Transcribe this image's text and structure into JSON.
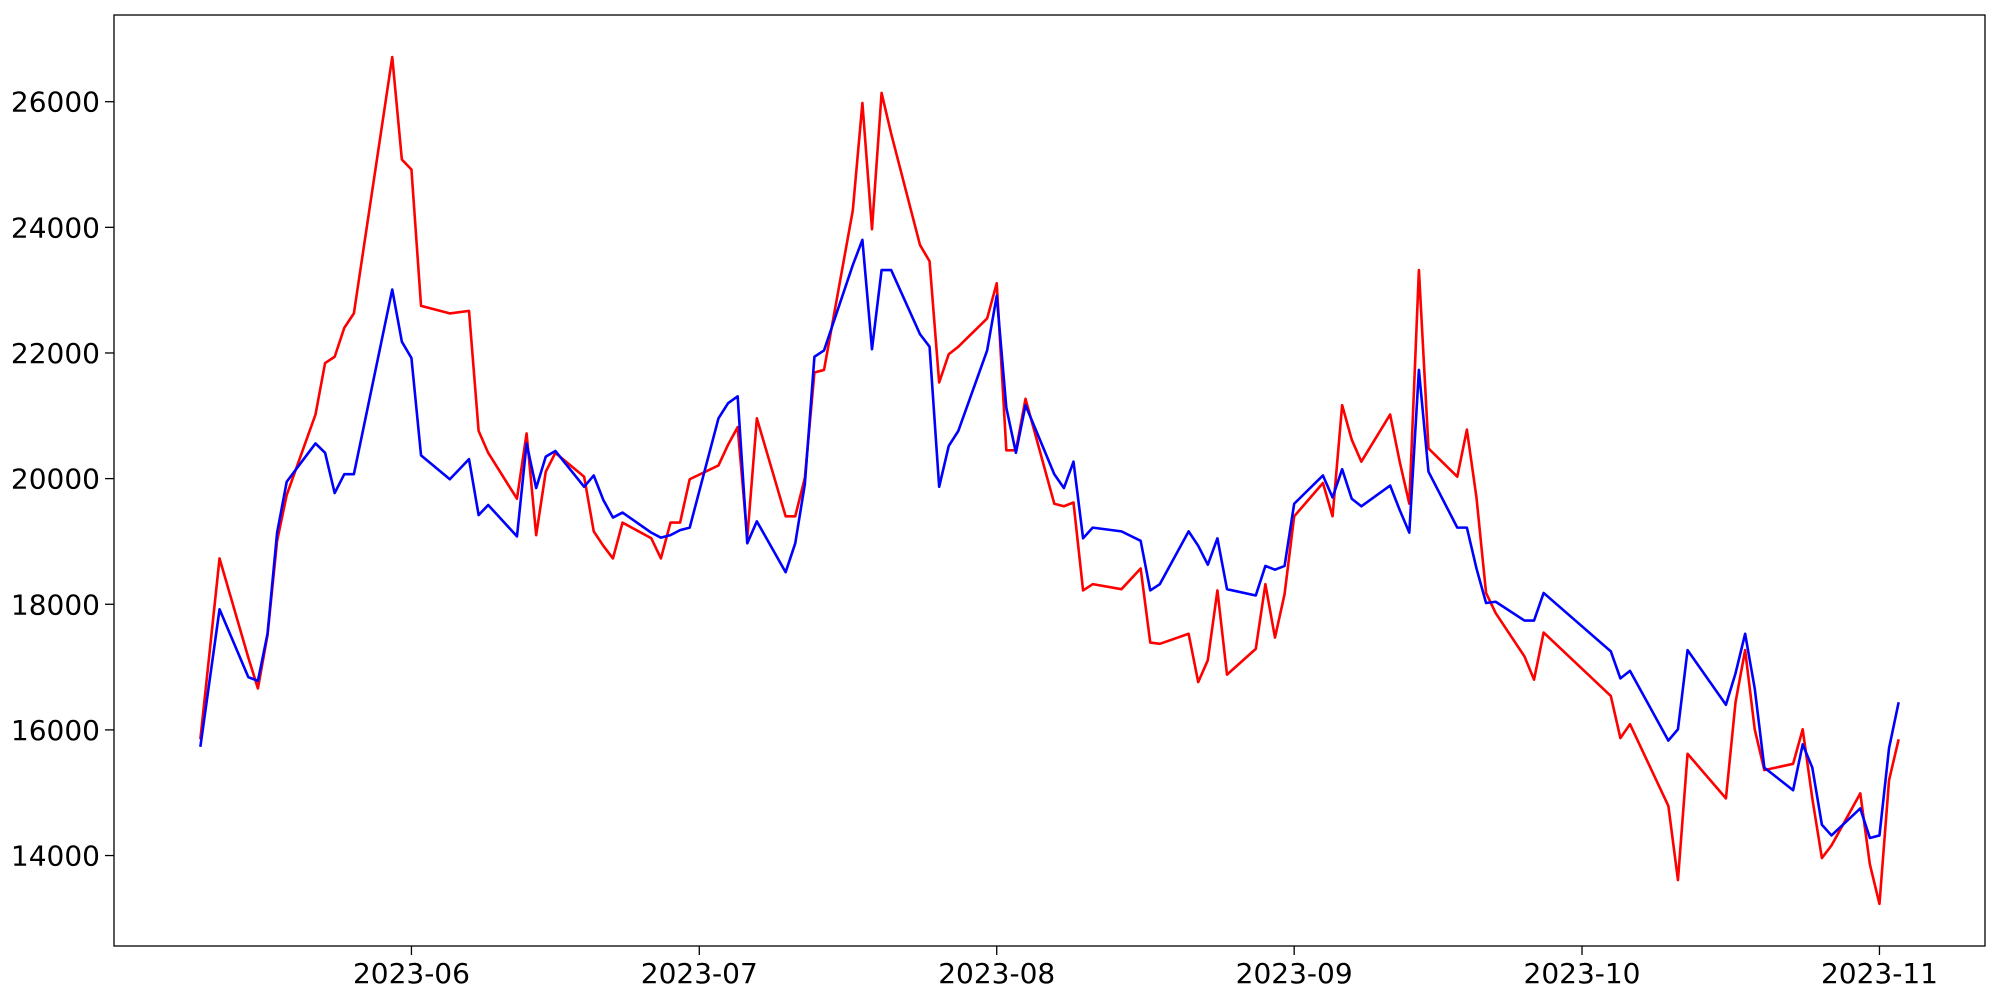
{
  "chart_data": {
    "type": "line",
    "x": [
      "2023-05-10",
      "2023-05-12",
      "2023-05-15",
      "2023-05-16",
      "2023-05-17",
      "2023-05-18",
      "2023-05-19",
      "2023-05-22",
      "2023-05-23",
      "2023-05-24",
      "2023-05-25",
      "2023-05-26",
      "2023-05-30",
      "2023-05-31",
      "2023-06-01",
      "2023-06-02",
      "2023-06-05",
      "2023-06-07",
      "2023-06-08",
      "2023-06-09",
      "2023-06-12",
      "2023-06-13",
      "2023-06-14",
      "2023-06-15",
      "2023-06-16",
      "2023-06-19",
      "2023-06-20",
      "2023-06-21",
      "2023-06-22",
      "2023-06-23",
      "2023-06-26",
      "2023-06-27",
      "2023-06-28",
      "2023-06-29",
      "2023-06-30",
      "2023-07-03",
      "2023-07-04",
      "2023-07-05",
      "2023-07-06",
      "2023-07-07",
      "2023-07-10",
      "2023-07-11",
      "2023-07-12",
      "2023-07-13",
      "2023-07-14",
      "2023-07-17",
      "2023-07-18",
      "2023-07-19",
      "2023-07-20",
      "2023-07-21",
      "2023-07-24",
      "2023-07-25",
      "2023-07-26",
      "2023-07-27",
      "2023-07-28",
      "2023-07-31",
      "2023-08-01",
      "2023-08-02",
      "2023-08-03",
      "2023-08-04",
      "2023-08-07",
      "2023-08-08",
      "2023-08-09",
      "2023-08-10",
      "2023-08-11",
      "2023-08-14",
      "2023-08-16",
      "2023-08-17",
      "2023-08-18",
      "2023-08-21",
      "2023-08-22",
      "2023-08-23",
      "2023-08-24",
      "2023-08-25",
      "2023-08-28",
      "2023-08-29",
      "2023-08-30",
      "2023-08-31",
      "2023-09-01",
      "2023-09-04",
      "2023-09-05",
      "2023-09-06",
      "2023-09-07",
      "2023-09-08",
      "2023-09-11",
      "2023-09-12",
      "2023-09-13",
      "2023-09-14",
      "2023-09-15",
      "2023-09-18",
      "2023-09-19",
      "2023-09-20",
      "2023-09-21",
      "2023-09-22",
      "2023-09-25",
      "2023-09-26",
      "2023-09-27",
      "2023-10-04",
      "2023-10-05",
      "2023-10-06",
      "2023-10-10",
      "2023-10-11",
      "2023-10-12",
      "2023-10-16",
      "2023-10-17",
      "2023-10-18",
      "2023-10-19",
      "2023-10-20",
      "2023-10-23",
      "2023-10-24",
      "2023-10-25",
      "2023-10-26",
      "2023-10-27",
      "2023-10-30",
      "2023-10-31",
      "2023-11-01",
      "2023-11-02",
      "2023-11-03"
    ],
    "series": [
      {
        "color": "#ff0000",
        "values": [
          15850,
          18730,
          17150,
          16660,
          17510,
          19010,
          19740,
          21020,
          21840,
          21940,
          22400,
          22630,
          26710,
          25080,
          24920,
          22750,
          22630,
          22670,
          20760,
          20410,
          19680,
          20720,
          19100,
          20110,
          20410,
          20030,
          19160,
          18930,
          18730,
          19300,
          19050,
          18730,
          19300,
          19300,
          19990,
          20210,
          20540,
          20820,
          19050,
          20960,
          19400,
          19400,
          20010,
          21690,
          21730,
          24270,
          25980,
          23970,
          26140,
          25490,
          23720,
          23460,
          21530,
          21980,
          22100,
          22550,
          23110,
          20450,
          20450,
          21270,
          19600,
          19560,
          19620,
          18220,
          18320,
          18240,
          18570,
          17390,
          17370,
          17530,
          16760,
          17110,
          18220,
          16880,
          17290,
          18320,
          17470,
          18160,
          19400,
          19930,
          19400,
          21170,
          20620,
          20270,
          21020,
          20270,
          19600,
          23320,
          20480,
          20030,
          20780,
          19700,
          18180,
          17860,
          17170,
          16800,
          17550,
          16540,
          15870,
          16090,
          14790,
          13610,
          15620,
          14910,
          16440,
          17270,
          16010,
          15360,
          15460,
          16010,
          14910,
          13960,
          14160,
          14990,
          13860,
          13230,
          15200,
          15850
        ]
      },
      {
        "color": "#0000ff",
        "values": [
          15730,
          17920,
          16840,
          16780,
          17530,
          19140,
          19950,
          20560,
          20410,
          19770,
          20070,
          20070,
          23010,
          22180,
          21920,
          20370,
          19990,
          20310,
          19420,
          19580,
          19080,
          20560,
          19850,
          20350,
          20440,
          19870,
          20050,
          19660,
          19380,
          19460,
          19140,
          19060,
          19100,
          19180,
          19220,
          20960,
          21200,
          21310,
          18970,
          19320,
          18510,
          18970,
          19910,
          21940,
          22040,
          23400,
          23800,
          22060,
          23320,
          23320,
          22300,
          22100,
          19870,
          20520,
          20760,
          22040,
          22910,
          21130,
          20410,
          21170,
          20070,
          19850,
          20270,
          19050,
          19220,
          19160,
          19010,
          18220,
          18320,
          19160,
          18930,
          18630,
          19050,
          18240,
          18140,
          18610,
          18550,
          18610,
          19600,
          20050,
          19700,
          20150,
          19680,
          19560,
          19890,
          19500,
          19140,
          21730,
          20110,
          19220,
          19220,
          18570,
          18020,
          18040,
          17740,
          17740,
          18180,
          17250,
          16820,
          16940,
          15830,
          16010,
          17270,
          16400,
          16900,
          17530,
          16660,
          15400,
          15040,
          15770,
          15400,
          14490,
          14320,
          14750,
          14280,
          14320,
          15710,
          16440
        ]
      }
    ],
    "xlim": [
      "2023-05-01",
      "2023-11-12"
    ],
    "xticks": [
      {
        "value": "2023-06-01",
        "label": "2023-06"
      },
      {
        "value": "2023-07-01",
        "label": "2023-07"
      },
      {
        "value": "2023-08-01",
        "label": "2023-08"
      },
      {
        "value": "2023-09-01",
        "label": "2023-09"
      },
      {
        "value": "2023-10-01",
        "label": "2023-10"
      },
      {
        "value": "2023-11-01",
        "label": "2023-11"
      }
    ],
    "ylim": [
      12560,
      27380
    ],
    "yticks": [
      14000,
      16000,
      18000,
      20000,
      22000,
      24000,
      26000
    ],
    "grid": false
  }
}
